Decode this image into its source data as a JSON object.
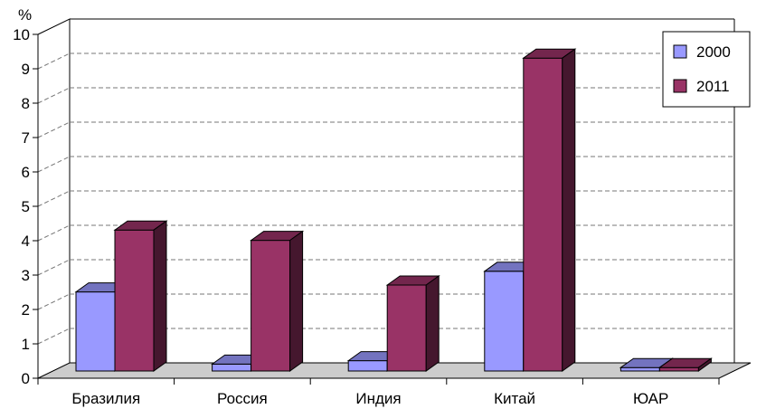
{
  "chart_data": {
    "type": "bar",
    "categories": [
      "Бразилия",
      "Россия",
      "Индия",
      "Китай",
      "ЮАР"
    ],
    "series": [
      {
        "name": "2000",
        "values": [
          2.3,
          0.2,
          0.3,
          2.9,
          0.1
        ],
        "color": "#9999ff"
      },
      {
        "name": "2011",
        "values": [
          4.1,
          3.8,
          2.5,
          9.1,
          0.1
        ],
        "color": "#993366"
      }
    ],
    "y_unit": "%",
    "ylim": [
      0,
      10
    ],
    "yticks": [
      "0",
      "1",
      "2",
      "3",
      "4",
      "5",
      "6",
      "7",
      "8",
      "9",
      "10"
    ],
    "grid": true,
    "three_d": true,
    "legend_position": "top-right"
  }
}
